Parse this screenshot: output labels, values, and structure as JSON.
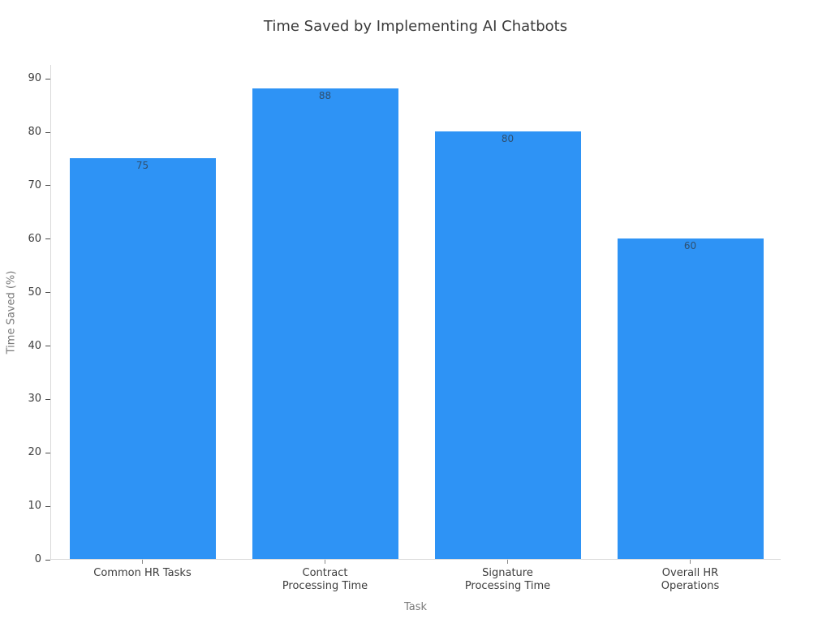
{
  "chart_data": {
    "type": "bar",
    "title": "Time Saved by Implementing AI Chatbots",
    "xlabel": "Task",
    "ylabel": "Time Saved (%)",
    "categories": [
      "Common HR Tasks",
      "Contract\nProcessing Time",
      "Signature\nProcessing Time",
      "Overall HR\nOperations"
    ],
    "values": [
      75,
      88,
      80,
      60
    ],
    "value_labels": [
      "75",
      "88",
      "80",
      "60"
    ],
    "yticks": [
      0,
      10,
      20,
      30,
      40,
      50,
      60,
      70,
      80,
      90
    ],
    "ylim": [
      0,
      92.6
    ],
    "grid": false,
    "legend": "none",
    "bar_width_fraction": 0.8,
    "colors": {
      "bar": "#2e93f5",
      "value_label": "#2f4f6f",
      "axis_line": "#d9d9d9",
      "tick_label": "#3d3d3d",
      "axis_title": "#7a7a7a",
      "title": "#3a3a3a",
      "background": "#ffffff"
    }
  }
}
